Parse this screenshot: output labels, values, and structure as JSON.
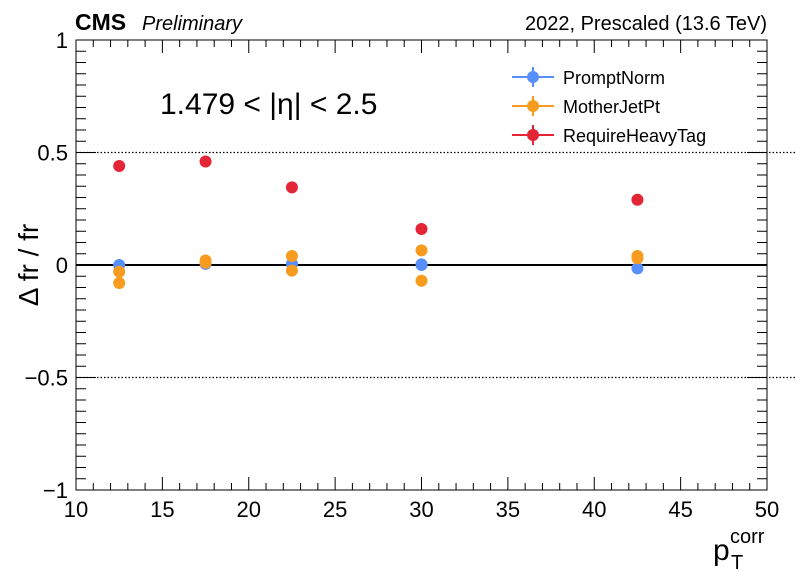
{
  "header": {
    "experiment": "CMS",
    "status": "Preliminary",
    "run_info": "2022, Prescaled (13.6 TeV)"
  },
  "region_label": "1.479 < |η| < 2.5",
  "chart_data": {
    "type": "scatter",
    "title": "",
    "ylabel": "Δ fr / fr",
    "xlabel": {
      "main": "p",
      "sub": "T",
      "sup": "corr"
    },
    "xlim": [
      10,
      50
    ],
    "ylim": [
      -1,
      1
    ],
    "x_ticks": [
      10,
      15,
      20,
      25,
      30,
      35,
      40,
      45,
      50
    ],
    "x_tick_labels": [
      "10",
      "15",
      "20",
      "25",
      "30",
      "35",
      "40",
      "45",
      "50"
    ],
    "y_ticks": [
      -1,
      -0.5,
      0,
      0.5,
      1
    ],
    "y_tick_labels": [
      "−1",
      "−0.5",
      "0",
      "0.5",
      "1"
    ],
    "reference_lines": [
      {
        "y": 0.5,
        "style": "dotted"
      },
      {
        "y": 0,
        "style": "solid"
      },
      {
        "y": -0.5,
        "style": "dotted"
      }
    ],
    "legend_position": "top-right",
    "series": [
      {
        "name": "PromptNorm",
        "color": "#5790fc",
        "x": [
          12.5,
          17.5,
          22.5,
          30,
          42.5
        ],
        "y": [
          0.0,
          0.005,
          0.005,
          0.003,
          -0.015
        ]
      },
      {
        "name": "PromptNorm",
        "color": "#5790fc",
        "x": [
          30
        ],
        "y": [
          0.0
        ]
      },
      {
        "name": "MotherJetPt",
        "color": "#f89c20",
        "x": [
          12.5,
          17.5,
          22.5,
          30,
          42.5
        ],
        "y": [
          -0.03,
          0.02,
          0.04,
          0.065,
          0.04
        ]
      },
      {
        "name": "MotherJetPt",
        "color": "#f89c20",
        "x": [
          12.5,
          17.5,
          22.5,
          30,
          42.5
        ],
        "y": [
          -0.08,
          0.01,
          -0.025,
          -0.07,
          0.03
        ]
      },
      {
        "name": "RequireHeavyTag",
        "color": "#e42536",
        "x": [
          12.5,
          17.5,
          22.5,
          30,
          42.5
        ],
        "y": [
          0.44,
          0.46,
          0.345,
          0.16,
          0.29
        ]
      }
    ]
  }
}
